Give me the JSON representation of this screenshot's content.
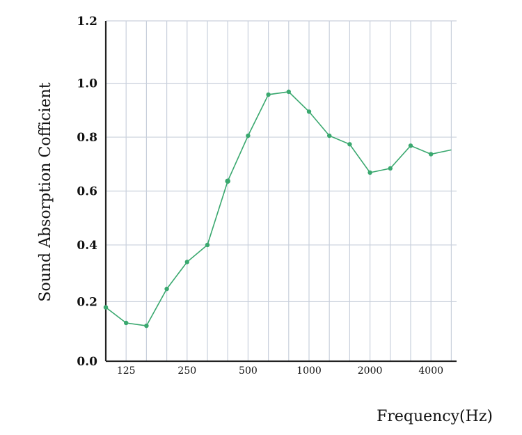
{
  "chart_data": {
    "type": "line",
    "title": "",
    "xlabel": "Frequency(Hz)",
    "ylabel": "Sound Absorption Cofficient",
    "ylim": [
      0,
      1.2
    ],
    "y_ticks": [
      "0.0",
      "0.2",
      "0.4",
      "0.6",
      "0.8",
      "1.0",
      "1.2"
    ],
    "y_tick_values": [
      0.0,
      0.21,
      0.41,
      0.6,
      0.79,
      0.98,
      1.2
    ],
    "x_ticks": [
      "125",
      "250",
      "500",
      "1000",
      "2000",
      "4000"
    ],
    "x_tick_band": [
      1,
      4,
      7,
      10,
      13,
      16
    ],
    "band_count": 17,
    "grid": true,
    "legend": "none",
    "color": "#3aa86f",
    "series": [
      {
        "values": [
          0.19,
          0.135,
          0.125,
          0.255,
          0.35,
          0.41,
          0.635,
          0.795,
          0.94,
          0.95,
          0.88,
          0.795,
          0.765,
          0.665,
          0.68,
          0.76,
          0.73,
          0.745
        ]
      }
    ]
  }
}
